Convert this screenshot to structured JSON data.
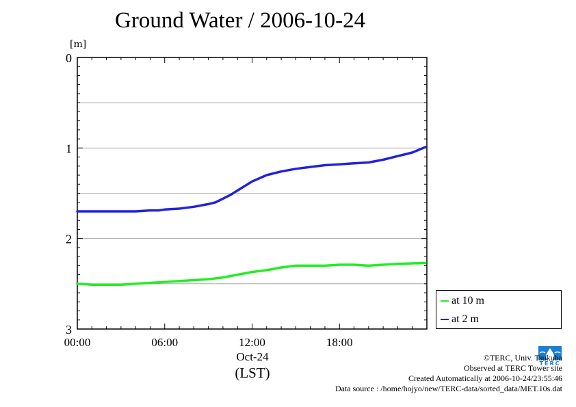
{
  "title": "Ground Water / 2006-10-24",
  "chart_data": {
    "type": "line",
    "ylabel": "[m]",
    "ylim": [
      0,
      3
    ],
    "y_inverted": true,
    "xlim": [
      "00:00",
      "24:00"
    ],
    "x_ticks": [
      "00:00",
      "06:00",
      "12:00",
      "18:00"
    ],
    "x_date_label": "Oct-24",
    "x_unit_label": "(LST)",
    "y_ticks": [
      0,
      1,
      2,
      3
    ],
    "grid": "horizontal",
    "legend_position": "bottom-right outside",
    "series": [
      {
        "name": "at 10 m",
        "color": "#22ee22",
        "x": [
          0,
          1,
          2,
          3,
          4,
          5,
          6,
          7,
          8,
          9,
          10,
          11,
          12,
          13,
          14,
          15,
          16,
          17,
          18,
          19,
          20,
          21,
          22,
          23.9
        ],
        "y": [
          2.5,
          2.51,
          2.51,
          2.51,
          2.5,
          2.49,
          2.48,
          2.47,
          2.46,
          2.45,
          2.43,
          2.4,
          2.37,
          2.35,
          2.32,
          2.3,
          2.3,
          2.3,
          2.29,
          2.29,
          2.3,
          2.29,
          2.28,
          2.27
        ]
      },
      {
        "name": "at 2 m",
        "color": "#2222dd",
        "x": [
          0,
          1,
          2,
          3,
          4,
          5,
          5.6,
          6,
          7,
          8,
          9,
          9.5,
          10,
          10.5,
          11,
          11.5,
          12,
          13,
          14,
          15,
          16,
          17,
          18,
          19,
          20,
          21,
          22,
          23,
          23.9
        ],
        "y": [
          1.7,
          1.7,
          1.7,
          1.7,
          1.7,
          1.69,
          1.69,
          1.68,
          1.67,
          1.65,
          1.62,
          1.6,
          1.56,
          1.52,
          1.47,
          1.42,
          1.37,
          1.3,
          1.26,
          1.23,
          1.21,
          1.19,
          1.18,
          1.17,
          1.16,
          1.13,
          1.09,
          1.05,
          0.99
        ]
      }
    ]
  },
  "credits": {
    "copyright": "©TERC, Univ. Tsukuba",
    "observed": "Observed at TERC Tower site",
    "created": "Created Automatically at 2006-10-24/23:55:46",
    "source": "Data source : /home/hojyo/new/TERC-data/sorted_data/MET.10s.dat"
  },
  "logo": {
    "text": "TERC",
    "color": "#1a7ed1",
    "icon": "terc-water-drop-logo"
  }
}
